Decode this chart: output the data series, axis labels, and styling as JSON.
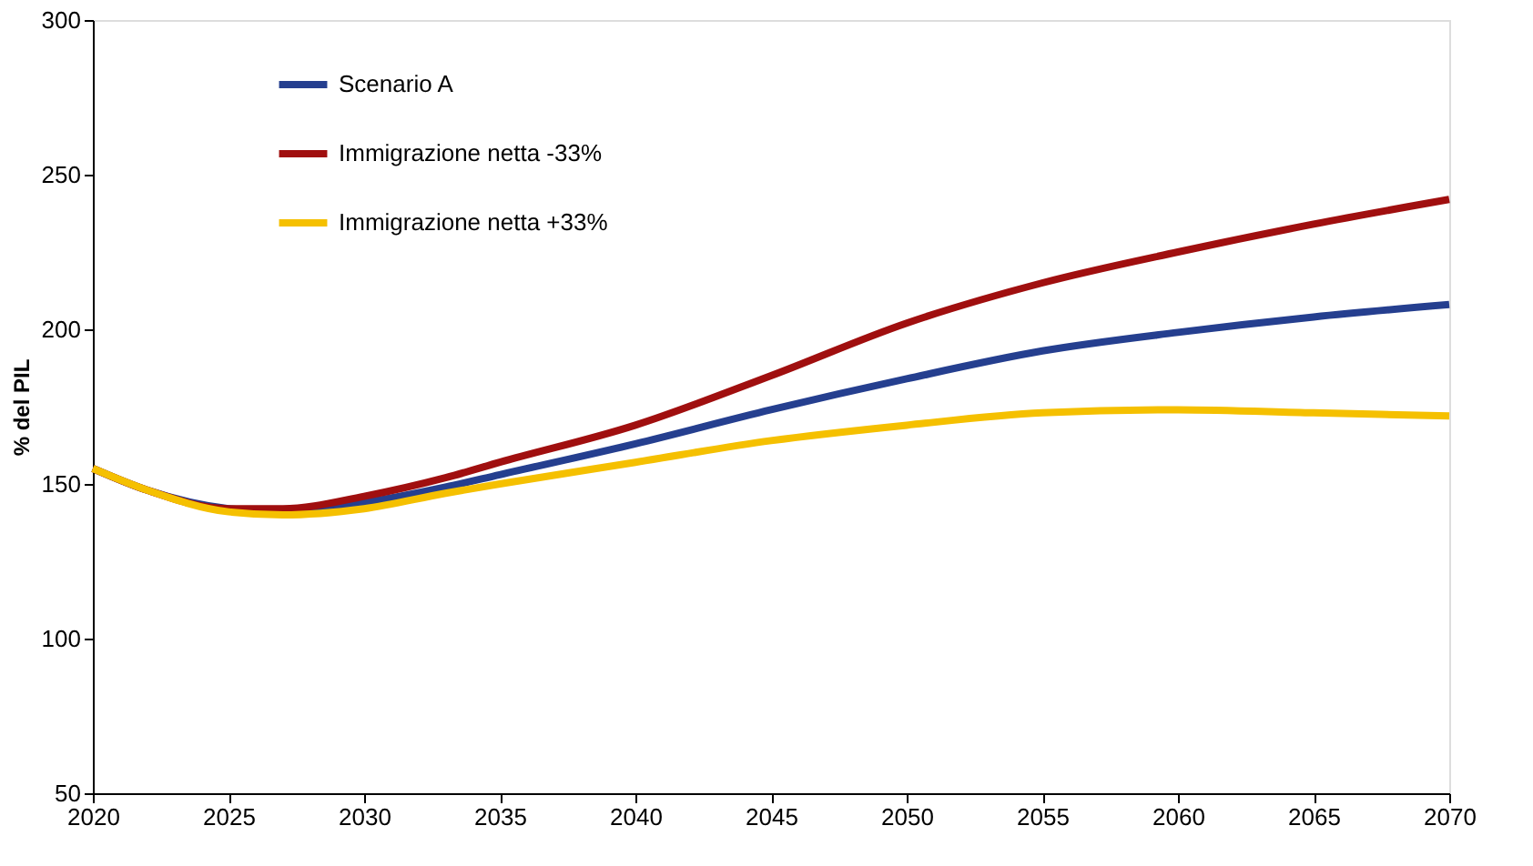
{
  "chart_data": {
    "type": "line",
    "ylabel": "% del PIL",
    "x": [
      2020,
      2022,
      2025,
      2027,
      2030,
      2033,
      2035,
      2040,
      2045,
      2050,
      2055,
      2060,
      2065,
      2070
    ],
    "series": [
      {
        "name": "Scenario A",
        "color": "#253f8f",
        "values": [
          155,
          148,
          142,
          141,
          144,
          149,
          153,
          163,
          174,
          184,
          193,
          199,
          204,
          208
        ]
      },
      {
        "name": "Immigrazione netta -33%",
        "color": "#a00f0f",
        "values": [
          155,
          148,
          142,
          142,
          146,
          152,
          157,
          169,
          185,
          202,
          215,
          225,
          234,
          242
        ]
      },
      {
        "name": "Immigrazione netta +33%",
        "color": "#f5c000",
        "values": [
          155,
          148,
          141,
          140,
          142,
          147,
          150,
          157,
          164,
          169,
          173,
          174,
          173,
          172
        ]
      }
    ],
    "xlim": [
      2020,
      2070
    ],
    "xticks": [
      2020,
      2025,
      2030,
      2035,
      2040,
      2045,
      2050,
      2055,
      2060,
      2065,
      2070
    ],
    "ylim": [
      50,
      300
    ],
    "yticks": [
      50,
      100,
      150,
      200,
      250,
      300
    ],
    "grid": false,
    "legend": "top left",
    "marker": "none",
    "line_style": "solid"
  }
}
